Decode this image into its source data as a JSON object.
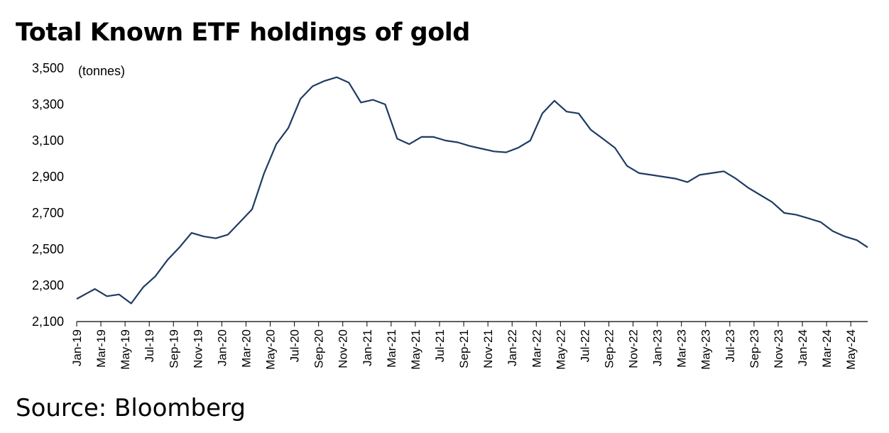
{
  "title": "Total Known ETF holdings of gold",
  "source": "Source: Bloomberg",
  "chart_data": {
    "type": "line",
    "title": "Total Known ETF holdings of gold",
    "unit_label": "(tonnes)",
    "xlabel": "",
    "ylabel": "",
    "ylim": [
      2100,
      3500
    ],
    "yticks": [
      "2,100",
      "2,300",
      "2,500",
      "2,700",
      "2,900",
      "3,100",
      "3,300",
      "3,500"
    ],
    "ytick_values": [
      2100,
      2300,
      2500,
      2700,
      2900,
      3100,
      3300,
      3500
    ],
    "xticks": [
      "Jan-19",
      "Mar-19",
      "May-19",
      "Jul-19",
      "Sep-19",
      "Nov-19",
      "Jan-20",
      "Mar-20",
      "May-20",
      "Jul-20",
      "Sep-20",
      "Nov-20",
      "Jan-21",
      "Mar-21",
      "May-21",
      "Jul-21",
      "Sep-21",
      "Nov-21",
      "Jan-22",
      "Mar-22",
      "May-22",
      "Jul-22",
      "Sep-22",
      "Nov-22",
      "Jan-23",
      "Mar-23",
      "May-23",
      "Jul-23",
      "Sep-23",
      "Nov-23",
      "Jan-24",
      "Mar-24",
      "May-24"
    ],
    "grid": false,
    "legend": "none",
    "line_color": "#1f3b63",
    "series": [
      {
        "x": [
          "2019-01",
          "2019-02",
          "2019-03",
          "2019-04",
          "2019-05",
          "2019-06",
          "2019-07",
          "2019-08",
          "2019-09",
          "2019-10",
          "2019-11",
          "2019-12",
          "2020-01",
          "2020-02",
          "2020-03",
          "2020-04",
          "2020-05",
          "2020-06",
          "2020-07",
          "2020-08",
          "2020-09",
          "2020-10",
          "2020-11",
          "2020-12",
          "2021-01",
          "2021-02",
          "2021-03",
          "2021-04",
          "2021-05",
          "2021-06",
          "2021-07",
          "2021-08",
          "2021-09",
          "2021-10",
          "2021-11",
          "2021-12",
          "2022-01",
          "2022-02",
          "2022-03",
          "2022-04",
          "2022-05",
          "2022-06",
          "2022-07",
          "2022-08",
          "2022-09",
          "2022-10",
          "2022-11",
          "2022-12",
          "2023-01",
          "2023-02",
          "2023-03",
          "2023-04",
          "2023-05",
          "2023-06",
          "2023-07",
          "2023-08",
          "2023-09",
          "2023-10",
          "2023-11",
          "2023-12",
          "2024-01",
          "2024-02",
          "2024-03",
          "2024-04",
          "2024-05",
          "2024-06"
        ],
        "values": [
          2225,
          2280,
          2240,
          2250,
          2200,
          2290,
          2350,
          2440,
          2510,
          2590,
          2570,
          2560,
          2580,
          2650,
          2720,
          2920,
          3080,
          3170,
          3330,
          3400,
          3430,
          3450,
          3420,
          3310,
          3325,
          3300,
          3110,
          3080,
          3120,
          3120,
          3100,
          3090,
          3070,
          3055,
          3040,
          3035,
          3060,
          3100,
          3250,
          3320,
          3260,
          3250,
          3160,
          3110,
          3060,
          2960,
          2920,
          2910,
          2900,
          2890,
          2870,
          2910,
          2920,
          2930,
          2890,
          2840,
          2800,
          2760,
          2700,
          2690,
          2670,
          2650,
          2600,
          2570,
          2550,
          2510
        ]
      }
    ]
  }
}
